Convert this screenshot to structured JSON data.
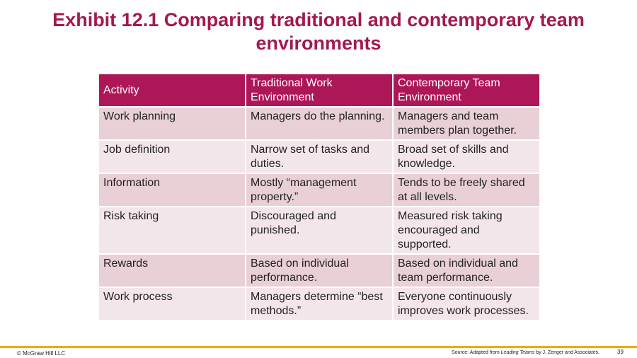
{
  "title": "Exhibit 12.1 Comparing traditional and contemporary team environments",
  "table": {
    "header": [
      "Activity",
      "Traditional Work Environment",
      "Contemporary Team Environment"
    ],
    "rows": [
      [
        "Work planning",
        "Managers do the planning.",
        "Managers and team members plan together."
      ],
      [
        "Job definition",
        "Narrow set of tasks and duties.",
        "Broad set of skills and knowledge."
      ],
      [
        "Information",
        "Mostly “management property.”",
        "Tends to be freely shared at all levels."
      ],
      [
        "Risk taking",
        "Discouraged and punished.",
        "Measured risk taking encouraged and supported."
      ],
      [
        "Rewards",
        "Based on individual performance.",
        "Based on individual and team performance."
      ],
      [
        "Work process",
        "Managers determine “best methods.”",
        "Everyone continuously improves work processes."
      ]
    ]
  },
  "footer": {
    "copyright": "© McGraw Hill LLC",
    "source": {
      "prefix": "Source: Adapted from ",
      "italic": "Leading Teams",
      "suffix": " by J. Zenger and Associates."
    },
    "page": "39"
  }
}
